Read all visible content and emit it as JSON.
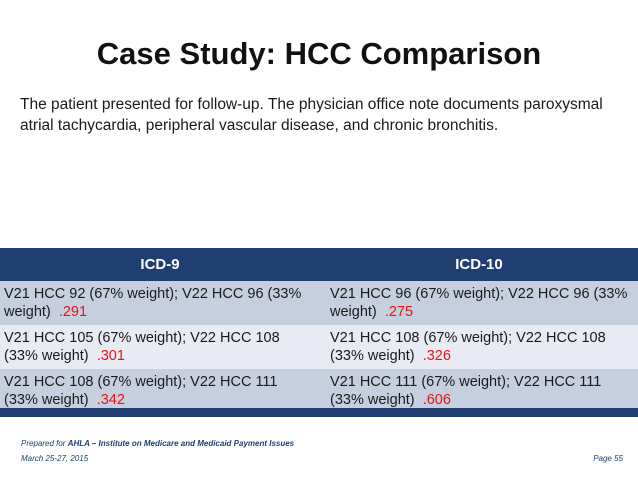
{
  "title": "Case Study: HCC Comparison",
  "intro": "The patient presented for follow-up.  The physician office note documents paroxysmal atrial tachycardia, peripheral vascular disease, and chronic bronchitis.",
  "table": {
    "headers": [
      "ICD-9",
      "ICD-10"
    ],
    "rows": [
      {
        "icd9": {
          "text": "V21 HCC 92 (67% weight); V22 HCC 96 (33% weight)",
          "factor": ".291"
        },
        "icd10": {
          "text": "V21 HCC 96 (67% weight); V22 HCC 96 (33% weight)",
          "factor": ".275"
        }
      },
      {
        "icd9": {
          "text": "V21 HCC 105 (67% weight); V22 HCC 108 (33% weight)",
          "factor": ".301"
        },
        "icd10": {
          "text": "V21 HCC 108 (67% weight); V22 HCC 108 (33% weight)",
          "factor": ".326"
        }
      },
      {
        "icd9": {
          "text": "V21 HCC 108 (67% weight); V22 HCC 111 (33% weight)",
          "factor": ".342"
        },
        "icd10": {
          "text": "V21 HCC 111 (67% weight); V22 HCC 111 (33% weight)",
          "factor": ".606"
        }
      }
    ]
  },
  "footer": {
    "prepared_prefix": "Prepared for ",
    "prepared_org": "AHLA – Institute on Medicare and Medicaid Payment Issues",
    "date": "March 25-27, 2015",
    "page": "Page 55"
  },
  "colors": {
    "header_bg": "#1e3f6f",
    "row_shade": "#c6cfdf",
    "row_plain": "#e8ebf3",
    "factor": "#e8140f"
  }
}
